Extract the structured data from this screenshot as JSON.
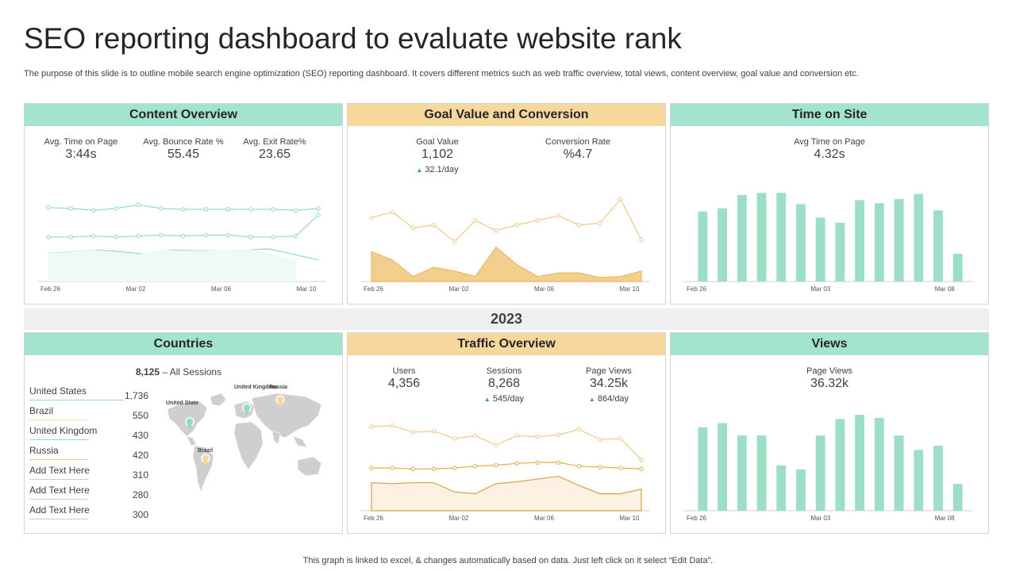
{
  "title": "SEO reporting dashboard to evaluate website rank",
  "subtitle": "The purpose of this slide is to outline mobile search engine optimization (SEO) reporting dashboard. It covers different metrics such as web traffic overview, total views, content overview, goal value and conversion etc.",
  "year": "2023",
  "footnote": "This graph is linked to excel, & changes automatically based on data. Just left click on it select “Edit Data”.",
  "colors": {
    "green": "#a3e4cc",
    "orange": "#f6d89c",
    "bar": "#9ddfc4",
    "line_green": "#8fdcbf",
    "line_orange": "#f0c98a",
    "dark_orange": "#d9a441"
  },
  "content_overview": {
    "title": "Content Overview",
    "kpis": [
      {
        "label": "Avg. Time on Page",
        "value": "3:44s"
      },
      {
        "label": "Avg. Bounce Rate %",
        "value": "55.45"
      },
      {
        "label": "Avg. Exit Rate%",
        "value": "23.65"
      }
    ]
  },
  "goal_value": {
    "title": "Goal Value and Conversion",
    "kpis": [
      {
        "label": "Goal Value",
        "value": "1,102",
        "sub": "32.1/day"
      },
      {
        "label": "Conversion Rate",
        "value": "%4.7"
      }
    ]
  },
  "time_on_site": {
    "title": "Time on Site",
    "kpi": {
      "label": "Avg Time on Page",
      "value": "4.32s"
    }
  },
  "countries": {
    "title": "Countries",
    "sessions_total": "8,125",
    "sessions_label": "– All Sessions",
    "rows": [
      {
        "name": "United States",
        "count": "1,736",
        "color": "#8fdcbf"
      },
      {
        "name": "Brazil",
        "count": "550",
        "color": "#f6d89c"
      },
      {
        "name": "United Kingdom",
        "count": "430",
        "color": "#8fdcbf"
      },
      {
        "name": "Russia",
        "count": "420",
        "color": "#f0c98a"
      },
      {
        "name": "Add Text Here",
        "count": "310",
        "color": "#cccccc"
      },
      {
        "name": "Add Text Here",
        "count": "280",
        "color": "#cccccc"
      },
      {
        "name": "Add Text Here",
        "count": "300",
        "color": "#cccccc"
      }
    ],
    "map_labels": {
      "us": "United State",
      "uk": "United Kingdom",
      "ru": "Russia",
      "br": "Brazil"
    }
  },
  "traffic_overview": {
    "title": "Traffic Overview",
    "kpis": [
      {
        "label": "Users",
        "value": "4,356"
      },
      {
        "label": "Sessions",
        "value": "8,268",
        "sub": "545/day"
      },
      {
        "label": "Page Views",
        "value": "34.25k",
        "sub": "864/day"
      }
    ]
  },
  "views": {
    "title": "Views",
    "kpi": {
      "label": "Page Views",
      "value": "36.32k"
    }
  },
  "chart_data": [
    {
      "id": "content_overview",
      "type": "line",
      "xticks": [
        "Feb 26",
        "Mar 02",
        "Mar 06",
        "Mar 10"
      ],
      "ylim": [
        0,
        100
      ],
      "series": [
        {
          "values": [
            77,
            76,
            74,
            76,
            80,
            76,
            75,
            75,
            75,
            75,
            75,
            74,
            76
          ],
          "style": "markers"
        },
        {
          "values": [
            45,
            45,
            46,
            45,
            46,
            47,
            46,
            47,
            47,
            45,
            45,
            46,
            69
          ],
          "style": "markers"
        },
        {
          "values": [
            27,
            29,
            31,
            29,
            26,
            31,
            30,
            30,
            31,
            32,
            26,
            20
          ],
          "style": "line"
        }
      ]
    },
    {
      "id": "goal_value",
      "type": "line",
      "xticks": [
        "Feb 26",
        "Mar 02",
        "Mar 06",
        "Mar 10"
      ],
      "ylim": [
        0,
        100
      ],
      "series": [
        {
          "values": [
            66,
            72,
            55,
            58,
            40,
            63,
            52,
            58,
            63,
            68,
            58,
            60,
            86,
            42
          ],
          "style": "markers"
        },
        {
          "values": [
            29,
            20,
            2,
            12,
            8,
            2,
            34,
            15,
            2,
            6,
            6,
            1,
            2,
            8
          ],
          "style": "area"
        }
      ]
    },
    {
      "id": "time_on_site",
      "type": "bar",
      "xticks": [
        "Feb 26",
        "Mar 03",
        "Mar 08"
      ],
      "ylim": [
        0,
        100
      ],
      "values": [
        68,
        71,
        84,
        86,
        86,
        75,
        62,
        57,
        79,
        76,
        80,
        85,
        69,
        27
      ]
    },
    {
      "id": "traffic_overview",
      "type": "line",
      "xticks": [
        "Feb 26",
        "Mar 02",
        "Mar 06",
        "Mar 10"
      ],
      "ylim": [
        0,
        100
      ],
      "series": [
        {
          "values": [
            88,
            89,
            82,
            83,
            75,
            78,
            68,
            78,
            77,
            79,
            85,
            74,
            75,
            52
          ],
          "style": "markers"
        },
        {
          "values": [
            43,
            43,
            42,
            42,
            43,
            45,
            46,
            48,
            49,
            49,
            45,
            44,
            43,
            42
          ],
          "style": "markers"
        },
        {
          "values": [
            27,
            26,
            27,
            27,
            17,
            15,
            26,
            28,
            31,
            34,
            24,
            15,
            15,
            20
          ],
          "style": "area"
        }
      ]
    },
    {
      "id": "views",
      "type": "bar",
      "xticks": [
        "Feb 26",
        "Mar 03",
        "Mar 08"
      ],
      "ylim": [
        0,
        100
      ],
      "values": [
        81,
        85,
        73,
        73,
        44,
        40,
        73,
        89,
        93,
        90,
        73,
        59,
        63,
        26
      ]
    }
  ]
}
